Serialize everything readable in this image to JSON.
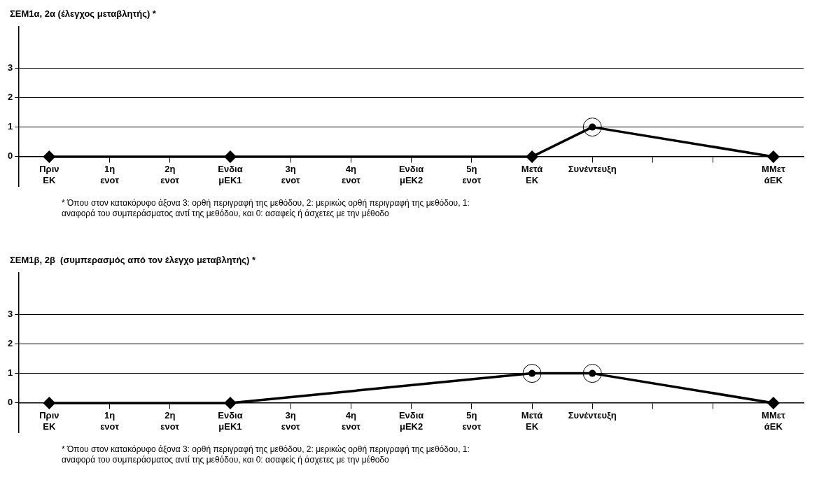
{
  "chart_data": [
    {
      "type": "line",
      "title": "ΣΕΜ1α, 2α (έλεγχος μεταβλητής) *",
      "categories": [
        "Πριν ΕΚ",
        "1η ενοτ",
        "2η ενοτ",
        "Ενδια μΕΚ1",
        "3η ενοτ",
        "4η ενοτ",
        "Ενδια μΕΚ2",
        "5η ενοτ",
        "Μετά ΕΚ",
        "Συνέντευξη",
        null,
        null,
        "ΜΜετ άΕΚ"
      ],
      "series": [
        {
          "color": "#000000",
          "values": [
            0,
            null,
            null,
            0,
            null,
            null,
            null,
            null,
            0,
            1,
            null,
            null,
            0
          ]
        }
      ],
      "ylim": [
        -1,
        4.4
      ],
      "yticks": [
        0,
        1,
        2,
        3
      ],
      "grid": "y",
      "marker": "diamond",
      "line_style": "solid",
      "legend": false,
      "annotations": [
        "* Όπου στον κατακόρυφο άξονα 3: ορθή περιγραφή της μεθόδου, 2: μερικώς ορθή περιγραφή της μεθόδου, 1: αναφορά του συμπεράσματος αντί της μεθόδου, και 0: ασαφείς ή άσχετες με την μέθοδο"
      ]
    },
    {
      "type": "line",
      "title": "ΣΕΜ1β, 2β  (συμπερασμός από τον έλεγχο μεταβλητής) *",
      "categories": [
        "Πριν ΕΚ",
        "1η ενοτ",
        "2η ενοτ",
        "Ενδια μΕΚ1",
        "3η ενοτ",
        "4η ενοτ",
        "Ενδια μΕΚ2",
        "5η ενοτ",
        "Μετά ΕΚ",
        "Συνέντευξη",
        null,
        null,
        "ΜΜετ άΕΚ"
      ],
      "series": [
        {
          "color": "#000000",
          "values": [
            0,
            null,
            null,
            0,
            null,
            null,
            null,
            null,
            1,
            1,
            null,
            null,
            0
          ]
        }
      ],
      "ylim": [
        -1,
        4.4
      ],
      "yticks": [
        0,
        1,
        2,
        3
      ],
      "grid": "y",
      "marker": "diamond",
      "line_style": "solid",
      "legend": false,
      "annotations": [
        "* Όπου στον κατακόρυφο άξονα 3: ορθή περιγραφή της μεθόδου, 2: μερικώς ορθή περιγραφή της μεθόδου, 1: αναφορά του συμπεράσματος αντί της μεθόδου, και 0: ασαφείς ή άσχετες με την μέθοδο"
      ]
    }
  ]
}
